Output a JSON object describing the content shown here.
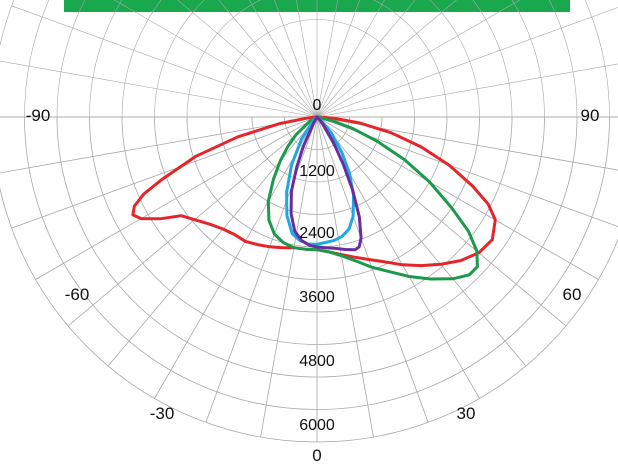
{
  "colors": {
    "banner": "#1aa84f",
    "grid": "#a8a8a8",
    "text": "#111111"
  },
  "chart_data": {
    "type": "polar",
    "grid": true,
    "radial_ticks": [
      "0",
      "1200",
      "2400",
      "3600",
      "4800",
      "6000"
    ],
    "rmax": 6000,
    "angle_labels": [
      {
        "deg": -90,
        "text": "-90"
      },
      {
        "deg": -60,
        "text": "-60"
      },
      {
        "deg": -30,
        "text": "-30"
      },
      {
        "deg": 0,
        "text": "0"
      },
      {
        "deg": 30,
        "text": "30"
      },
      {
        "deg": 60,
        "text": "60"
      },
      {
        "deg": 90,
        "text": "90"
      }
    ],
    "series": [
      {
        "color": "#e5252a",
        "points": [
          [
            -85,
            150
          ],
          [
            -80,
            700
          ],
          [
            -76,
            1500
          ],
          [
            -72,
            2350
          ],
          [
            -68,
            3100
          ],
          [
            -66,
            3500
          ],
          [
            -64,
            3750
          ],
          [
            -62,
            3850
          ],
          [
            -60,
            3750
          ],
          [
            -57,
            3450
          ],
          [
            -54,
            3100
          ],
          [
            -50,
            2950
          ],
          [
            -45,
            2800
          ],
          [
            -40,
            2700
          ],
          [
            -35,
            2650
          ],
          [
            -30,
            2650
          ],
          [
            -25,
            2600
          ],
          [
            -20,
            2550
          ],
          [
            -15,
            2500
          ],
          [
            -10,
            2450
          ],
          [
            -5,
            2450
          ],
          [
            0,
            2450
          ],
          [
            5,
            2500
          ],
          [
            10,
            2580
          ],
          [
            15,
            2680
          ],
          [
            20,
            2800
          ],
          [
            25,
            2950
          ],
          [
            30,
            3150
          ],
          [
            35,
            3350
          ],
          [
            40,
            3550
          ],
          [
            45,
            3750
          ],
          [
            50,
            3900
          ],
          [
            55,
            3950
          ],
          [
            60,
            3800
          ],
          [
            63,
            3550
          ],
          [
            66,
            3150
          ],
          [
            70,
            2600
          ],
          [
            74,
            2000
          ],
          [
            78,
            1400
          ],
          [
            82,
            800
          ],
          [
            86,
            300
          ]
        ]
      },
      {
        "color": "#1b9a4b",
        "points": [
          [
            -60,
            150
          ],
          [
            -50,
            500
          ],
          [
            -45,
            750
          ],
          [
            -40,
            1050
          ],
          [
            -35,
            1400
          ],
          [
            -30,
            1800
          ],
          [
            -25,
            2100
          ],
          [
            -20,
            2300
          ],
          [
            -15,
            2400
          ],
          [
            -10,
            2450
          ],
          [
            -5,
            2450
          ],
          [
            0,
            2450
          ],
          [
            5,
            2500
          ],
          [
            10,
            2600
          ],
          [
            15,
            2750
          ],
          [
            20,
            2950
          ],
          [
            25,
            3150
          ],
          [
            30,
            3400
          ],
          [
            35,
            3650
          ],
          [
            40,
            3900
          ],
          [
            44,
            4050
          ],
          [
            47,
            4050
          ],
          [
            50,
            3850
          ],
          [
            53,
            3500
          ],
          [
            56,
            3000
          ],
          [
            60,
            2400
          ],
          [
            64,
            1800
          ],
          [
            68,
            1200
          ],
          [
            72,
            700
          ],
          [
            76,
            300
          ]
        ]
      },
      {
        "color": "#1fa9e1",
        "points": [
          [
            -45,
            100
          ],
          [
            -35,
            500
          ],
          [
            -28,
            1000
          ],
          [
            -22,
            1500
          ],
          [
            -17,
            1900
          ],
          [
            -12,
            2200
          ],
          [
            -8,
            2300
          ],
          [
            -4,
            2350
          ],
          [
            0,
            2350
          ],
          [
            4,
            2320
          ],
          [
            8,
            2300
          ],
          [
            12,
            2250
          ],
          [
            16,
            2150
          ],
          [
            20,
            1950
          ],
          [
            25,
            1600
          ],
          [
            30,
            1200
          ],
          [
            35,
            800
          ],
          [
            42,
            400
          ],
          [
            50,
            100
          ]
        ]
      },
      {
        "color": "#6a2c9e",
        "points": [
          [
            -30,
            100
          ],
          [
            -25,
            600
          ],
          [
            -22,
            1000
          ],
          [
            -19,
            1450
          ],
          [
            -15,
            1850
          ],
          [
            -11,
            2150
          ],
          [
            -7,
            2300
          ],
          [
            -3,
            2380
          ],
          [
            0,
            2400
          ],
          [
            4,
            2420
          ],
          [
            8,
            2450
          ],
          [
            12,
            2500
          ],
          [
            16,
            2550
          ],
          [
            18,
            2520
          ],
          [
            20,
            2380
          ],
          [
            23,
            2000
          ],
          [
            26,
            1500
          ],
          [
            29,
            1000
          ],
          [
            33,
            550
          ],
          [
            38,
            200
          ],
          [
            45,
            50
          ]
        ]
      }
    ]
  }
}
